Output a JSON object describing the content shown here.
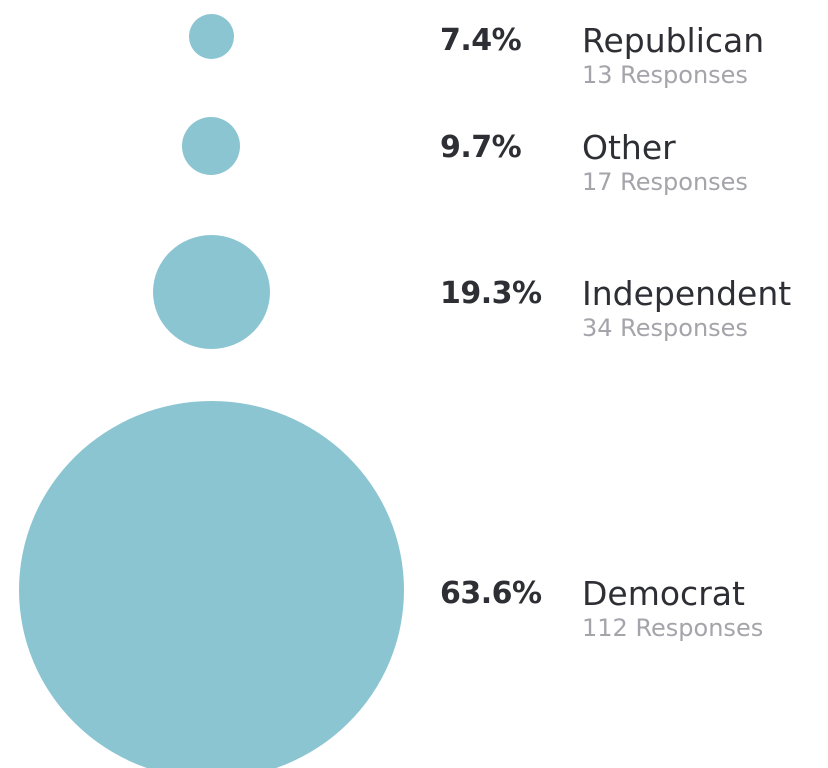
{
  "chart_data": {
    "type": "bubble",
    "title": "",
    "color": "#8cc5d2",
    "items": [
      {
        "label": "Republican",
        "percent": "7.4%",
        "value": 7.4,
        "responses": 13,
        "responses_text": "13 Responses"
      },
      {
        "label": "Other",
        "percent": "9.7%",
        "value": 9.7,
        "responses": 17,
        "responses_text": "17 Responses"
      },
      {
        "label": "Independent",
        "percent": "19.3%",
        "value": 19.3,
        "responses": 34,
        "responses_text": "34 Responses"
      },
      {
        "label": "Democrat",
        "percent": "63.6%",
        "value": 63.6,
        "responses": 112,
        "responses_text": "112 Responses"
      }
    ]
  }
}
